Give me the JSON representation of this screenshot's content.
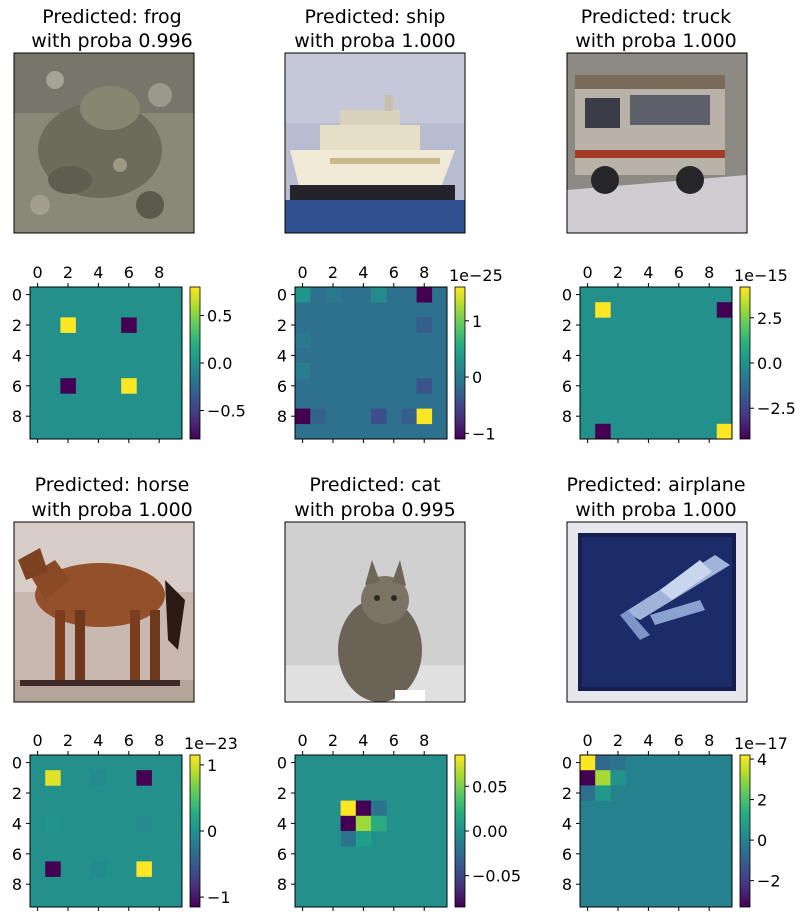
{
  "colormap": "viridis",
  "panels": [
    {
      "title_line1": "Predicted: frog",
      "title_line2": "with proba 0.996",
      "image_icon": "frog-photo"
    },
    {
      "title_line1": "Predicted: ship",
      "title_line2": "with proba 1.000",
      "image_icon": "ship-photo"
    },
    {
      "title_line1": "Predicted: truck",
      "title_line2": "with proba 1.000",
      "image_icon": "truck-photo"
    },
    {
      "title_line1": "Predicted: horse",
      "title_line2": "with proba 1.000",
      "image_icon": "horse-photo"
    },
    {
      "title_line1": "Predicted: cat",
      "title_line2": "with proba 0.995",
      "image_icon": "cat-photo"
    },
    {
      "title_line1": "Predicted: airplane",
      "title_line2": "with proba 1.000",
      "image_icon": "airplane-photo"
    }
  ],
  "chart_data": [
    {
      "type": "heatmap",
      "grid_size": 10,
      "x_ticks": [
        "0",
        "2",
        "4",
        "6",
        "8"
      ],
      "y_ticks": [
        "0",
        "2",
        "4",
        "6",
        "8"
      ],
      "background": 0.0,
      "vmin": -0.8,
      "vmax": 0.8,
      "colorbar_exponent": "",
      "colorbar_ticks": [
        {
          "value": 0.5,
          "label": "0.5"
        },
        {
          "value": 0.0,
          "label": "0.0"
        },
        {
          "value": -0.5,
          "label": "−0.5"
        }
      ],
      "cells": [
        {
          "row": 2,
          "col": 2,
          "value": 0.8
        },
        {
          "row": 2,
          "col": 6,
          "value": -0.8
        },
        {
          "row": 6,
          "col": 2,
          "value": -0.8
        },
        {
          "row": 6,
          "col": 6,
          "value": 0.8
        }
      ]
    },
    {
      "type": "heatmap",
      "grid_size": 10,
      "x_ticks": [
        "0",
        "2",
        "4",
        "6",
        "8"
      ],
      "y_ticks": [
        "0",
        "2",
        "4",
        "6",
        "8"
      ],
      "background": -0.1,
      "vmin": -1.1,
      "vmax": 1.6,
      "colorbar_exponent": "1e−25",
      "colorbar_ticks": [
        {
          "value": 1,
          "label": "1"
        },
        {
          "value": 0,
          "label": "0"
        },
        {
          "value": -1,
          "label": "−1"
        }
      ],
      "cells": [
        {
          "row": 0,
          "col": 0,
          "value": 0.3
        },
        {
          "row": 0,
          "col": 5,
          "value": 0.2
        },
        {
          "row": 0,
          "col": 8,
          "value": -1.1
        },
        {
          "row": 0,
          "col": 2,
          "value": 0.0
        },
        {
          "row": 2,
          "col": 8,
          "value": -0.3
        },
        {
          "row": 3,
          "col": 0,
          "value": 0.0
        },
        {
          "row": 5,
          "col": 0,
          "value": 0.05
        },
        {
          "row": 6,
          "col": 8,
          "value": -0.4
        },
        {
          "row": 8,
          "col": 0,
          "value": -1.1
        },
        {
          "row": 8,
          "col": 1,
          "value": -0.25
        },
        {
          "row": 8,
          "col": 5,
          "value": -0.45
        },
        {
          "row": 8,
          "col": 7,
          "value": -0.3
        },
        {
          "row": 8,
          "col": 8,
          "value": 1.6
        }
      ]
    },
    {
      "type": "heatmap",
      "grid_size": 10,
      "x_ticks": [
        "0",
        "2",
        "4",
        "6",
        "8"
      ],
      "y_ticks": [
        "0",
        "2",
        "4",
        "6",
        "8"
      ],
      "background": 0.0,
      "vmin": -4.2,
      "vmax": 4.2,
      "colorbar_exponent": "1e−15",
      "colorbar_ticks": [
        {
          "value": 2.5,
          "label": "2.5"
        },
        {
          "value": 0.0,
          "label": "0.0"
        },
        {
          "value": -2.5,
          "label": "−2.5"
        }
      ],
      "cells": [
        {
          "row": 1,
          "col": 1,
          "value": 4.2
        },
        {
          "row": 1,
          "col": 9,
          "value": -4.2
        },
        {
          "row": 9,
          "col": 1,
          "value": -4.2
        },
        {
          "row": 9,
          "col": 9,
          "value": 4.2
        }
      ]
    },
    {
      "type": "heatmap",
      "grid_size": 10,
      "x_ticks": [
        "0",
        "2",
        "4",
        "6",
        "8"
      ],
      "y_ticks": [
        "0",
        "2",
        "4",
        "6",
        "8"
      ],
      "background": 0.0,
      "vmin": -1.15,
      "vmax": 1.15,
      "colorbar_exponent": "1e−23",
      "colorbar_ticks": [
        {
          "value": 1,
          "label": "1"
        },
        {
          "value": 0,
          "label": "0"
        },
        {
          "value": -1,
          "label": "−1"
        }
      ],
      "cells": [
        {
          "row": 1,
          "col": 1,
          "value": 1.05
        },
        {
          "row": 1,
          "col": 7,
          "value": -1.15
        },
        {
          "row": 7,
          "col": 1,
          "value": -1.15
        },
        {
          "row": 7,
          "col": 7,
          "value": 1.15
        },
        {
          "row": 1,
          "col": 4,
          "value": -0.05
        },
        {
          "row": 4,
          "col": 1,
          "value": 0.05
        },
        {
          "row": 4,
          "col": 7,
          "value": -0.05
        },
        {
          "row": 7,
          "col": 4,
          "value": -0.05
        }
      ]
    },
    {
      "type": "heatmap",
      "grid_size": 10,
      "x_ticks": [
        "0",
        "2",
        "4",
        "6",
        "8"
      ],
      "y_ticks": [
        "0",
        "2",
        "4",
        "6",
        "8"
      ],
      "background": 0.0,
      "vmin": -0.085,
      "vmax": 0.085,
      "colorbar_exponent": "",
      "colorbar_ticks": [
        {
          "value": 0.05,
          "label": "0.05"
        },
        {
          "value": 0.0,
          "label": "0.00"
        },
        {
          "value": -0.05,
          "label": "−0.05"
        }
      ],
      "cells": [
        {
          "row": 3,
          "col": 3,
          "value": 0.085
        },
        {
          "row": 3,
          "col": 4,
          "value": -0.085
        },
        {
          "row": 3,
          "col": 5,
          "value": -0.02
        },
        {
          "row": 4,
          "col": 3,
          "value": -0.085
        },
        {
          "row": 4,
          "col": 4,
          "value": 0.06
        },
        {
          "row": 4,
          "col": 5,
          "value": 0.02
        },
        {
          "row": 5,
          "col": 3,
          "value": -0.02
        },
        {
          "row": 5,
          "col": 4,
          "value": 0.01
        }
      ]
    },
    {
      "type": "heatmap",
      "grid_size": 10,
      "x_ticks": [
        "0",
        "2",
        "4",
        "6",
        "8"
      ],
      "y_ticks": [
        "0",
        "2",
        "4",
        "6",
        "8"
      ],
      "background": 0.0,
      "vmin": -3.3,
      "vmax": 4.2,
      "colorbar_exponent": "1e−17",
      "colorbar_ticks": [
        {
          "value": 4,
          "label": "4"
        },
        {
          "value": 2,
          "label": "2"
        },
        {
          "value": 0,
          "label": "0"
        },
        {
          "value": -2,
          "label": "−2"
        }
      ],
      "cells": [
        {
          "row": 0,
          "col": 0,
          "value": 4.2
        },
        {
          "row": 0,
          "col": 1,
          "value": -0.8
        },
        {
          "row": 0,
          "col": 2,
          "value": -0.4
        },
        {
          "row": 1,
          "col": 0,
          "value": -3.3
        },
        {
          "row": 1,
          "col": 1,
          "value": 3.2
        },
        {
          "row": 1,
          "col": 2,
          "value": 0.5
        },
        {
          "row": 2,
          "col": 0,
          "value": -0.6
        },
        {
          "row": 2,
          "col": 1,
          "value": 0.7
        }
      ]
    }
  ]
}
